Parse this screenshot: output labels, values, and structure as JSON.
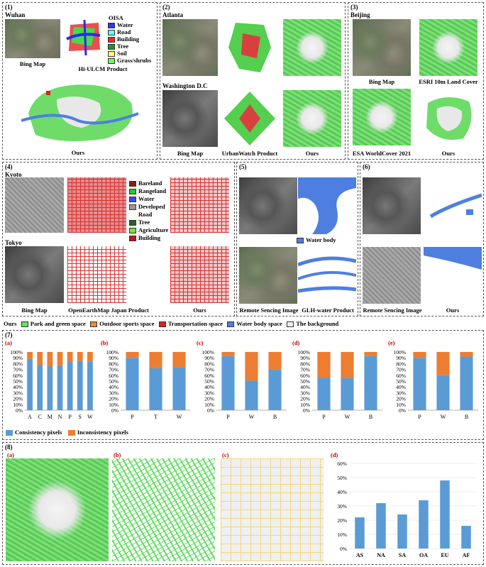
{
  "colors": {
    "water": "#3333ff",
    "road": "#66ffff",
    "building": "#ff2222",
    "tree": "#2e8b2e",
    "soil": "#ffff66",
    "grass": "#66ff66",
    "bareland": "#8b1a1a",
    "rangeland": "#22cc22",
    "ow_water": "#4444ff",
    "developed": "#999999",
    "ow_road": "#ffffff",
    "ow_tree": "#226622",
    "agriculture": "#77dd44",
    "ow_building": "#cc1111",
    "park": "#66dd66",
    "sports": "#f08a2a",
    "transport": "#dd2222",
    "waterbody": "#4e7fe0",
    "background": "#eeeeee",
    "consistency": "#5b9bd5",
    "inconsistency": "#ed7d31",
    "bar8": "#5b9bd5"
  },
  "panel1": {
    "tag": "(1)",
    "city": "Wuhan",
    "cap_bing": "Bing Map",
    "cap_product": "Hi-ULCM Product",
    "cap_ours": "Ours",
    "legend_title": "OISA",
    "legend": [
      "Water",
      "Road",
      "Building",
      "Tree",
      "Soil",
      "Grass/shrubs"
    ]
  },
  "panel2": {
    "tag": "(2)",
    "city1": "Atlanta",
    "city2": "Washington D.C",
    "cap_bing": "Bing Map",
    "cap_product": "UrbanWatch Product",
    "cap_ours": "Ours"
  },
  "panel3": {
    "tag": "(3)",
    "city": "Beijing",
    "cap_bing": "Bing Map",
    "cap_esri": "ESRI 10m Land Cover",
    "cap_esa": "ESA WorldCover 2021",
    "cap_ours": "Ours"
  },
  "panel4": {
    "tag": "(4)",
    "city1": "Kyoto",
    "city2": "Tokyo",
    "cap_bing": "Bing Map",
    "cap_product": "OpenEarthMap Japan Product",
    "cap_ours": "Ours",
    "legend": [
      "Bareland",
      "Rangeland",
      "Water",
      "Developed",
      "Road",
      "Tree",
      "Agriculture",
      "Building"
    ]
  },
  "panel5": {
    "tag": "(5)",
    "water_label": "Water body",
    "cap_rs": "Remote Sencing Image",
    "cap_product": "GLH-water Product"
  },
  "panel6": {
    "tag": "(6)",
    "cap_rs": "Remote Sencing Image",
    "cap_ours": "Ours"
  },
  "legend_main": {
    "ours": "Ours",
    "items": [
      "Park and green space",
      "Outdoor sports space",
      "Transportation space",
      "Water body space",
      "The background"
    ]
  },
  "panel7": {
    "tag": "(7)",
    "legend": [
      "Consistency pixels",
      "Inconsistency pixels"
    ]
  },
  "panel8": {
    "tag": "(8)",
    "subs": [
      "(a)",
      "(b)",
      "(c)",
      "(d)"
    ]
  },
  "chart_data": [
    {
      "type": "bar",
      "stacked": true,
      "label": "(a)",
      "categories": [
        "A",
        "C",
        "M",
        "N",
        "P",
        "S",
        "W"
      ],
      "series": [
        {
          "name": "Consistency pixels",
          "values": [
            88,
            78,
            75,
            77,
            83,
            85,
            83
          ]
        },
        {
          "name": "Inconsistency pixels",
          "values": [
            12,
            22,
            25,
            23,
            17,
            15,
            17
          ]
        }
      ],
      "yticks": [
        "0%",
        "10%",
        "20%",
        "30%",
        "40%",
        "50%",
        "60%",
        "70%",
        "80%",
        "90%",
        "100%"
      ],
      "ylim": [
        0,
        100
      ]
    },
    {
      "type": "bar",
      "stacked": true,
      "label": "(b)",
      "categories": [
        "P",
        "T",
        "W"
      ],
      "series": [
        {
          "name": "Consistency pixels",
          "values": [
            90,
            72,
            74
          ]
        },
        {
          "name": "Inconsistency pixels",
          "values": [
            10,
            28,
            26
          ]
        }
      ],
      "yticks": [
        "0%",
        "10%",
        "20%",
        "30%",
        "40%",
        "50%",
        "60%",
        "70%",
        "80%",
        "90%",
        "100%"
      ],
      "ylim": [
        0,
        100
      ]
    },
    {
      "type": "bar",
      "stacked": true,
      "label": "(c)",
      "categories": [
        "P",
        "W",
        "B"
      ],
      "series": [
        {
          "name": "Consistency pixels",
          "values": [
            93,
            51,
            70
          ]
        },
        {
          "name": "Inconsistency pixels",
          "values": [
            7,
            49,
            30
          ]
        }
      ],
      "yticks": [
        "0%",
        "10%",
        "20%",
        "30%",
        "40%",
        "50%",
        "60%",
        "70%",
        "80%",
        "90%",
        "100%"
      ],
      "ylim": [
        0,
        100
      ]
    },
    {
      "type": "bar",
      "stacked": true,
      "label": "(d)",
      "categories": [
        "P",
        "W",
        "B"
      ],
      "series": [
        {
          "name": "Consistency pixels",
          "values": [
            56,
            55,
            93
          ]
        },
        {
          "name": "Inconsistency pixels",
          "values": [
            44,
            45,
            7
          ]
        }
      ],
      "yticks": [
        "0%",
        "10%",
        "20%",
        "30%",
        "40%",
        "50%",
        "60%",
        "70%",
        "80%",
        "90%",
        "100%"
      ],
      "ylim": [
        0,
        100
      ]
    },
    {
      "type": "bar",
      "stacked": true,
      "label": "(e)",
      "categories": [
        "P",
        "W",
        "B"
      ],
      "series": [
        {
          "name": "Consistency pixels",
          "values": [
            90,
            60,
            92
          ]
        },
        {
          "name": "Inconsistency pixels",
          "values": [
            10,
            40,
            8
          ]
        }
      ],
      "yticks": [
        "0%",
        "10%",
        "20%",
        "30%",
        "40%",
        "50%",
        "60%",
        "70%",
        "80%",
        "90%",
        "100%"
      ],
      "ylim": [
        0,
        100
      ]
    },
    {
      "type": "bar",
      "label": "(d)",
      "categories": [
        "AS",
        "NA",
        "SA",
        "OA",
        "EU",
        "AF"
      ],
      "series": [
        {
          "values": [
            22,
            32,
            24,
            34,
            48,
            16
          ]
        }
      ],
      "yticks": [
        "0%",
        "10%",
        "20%",
        "30%",
        "40%",
        "50%",
        "60%"
      ],
      "ylim": [
        0,
        60
      ]
    }
  ]
}
